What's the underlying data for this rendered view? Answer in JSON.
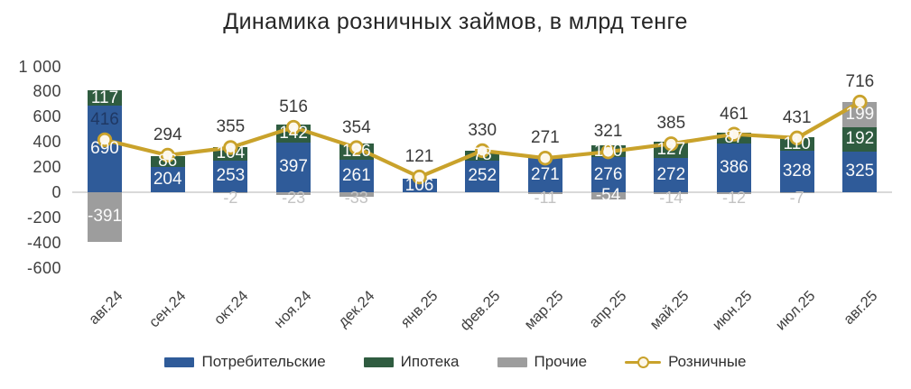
{
  "title": "Динамика розничных займов, в млрд тенге",
  "legend": [
    {
      "key": "consumer",
      "label": "Потребительские",
      "color": "#2f5b99",
      "type": "bar"
    },
    {
      "key": "mortgage",
      "label": "Ипотека",
      "color": "#2f5c40",
      "type": "bar"
    },
    {
      "key": "other",
      "label": "Прочие",
      "color": "#9d9d9d",
      "type": "bar"
    },
    {
      "key": "retail",
      "label": "Розничные",
      "color": "#c9a22b",
      "type": "line"
    }
  ],
  "chart_data": {
    "type": "bar",
    "subtype": "stacked-bars-with-line-overlay",
    "title": "Динамика розничных займов, в млрд тенге",
    "categories": [
      "авг.24",
      "сен.24",
      "окт.24",
      "ноя.24",
      "дек.24",
      "янв.25",
      "фев.25",
      "мар.25",
      "апр.25",
      "май.25",
      "июн.25",
      "июл.25",
      "авг.25"
    ],
    "series": [
      {
        "key": "consumer",
        "name": "Потребительские",
        "type": "bar",
        "color": "#2f5b99",
        "values": [
          690,
          204,
          253,
          397,
          261,
          106,
          252,
          271,
          276,
          272,
          386,
          328,
          325
        ]
      },
      {
        "key": "mortgage",
        "name": "Ипотека",
        "type": "bar",
        "color": "#2f5c40",
        "values": [
          117,
          86,
          104,
          142,
          126,
          null,
          78,
          null,
          100,
          127,
          87,
          110,
          192
        ]
      },
      {
        "key": "other",
        "name": "Прочие",
        "type": "bar",
        "color": "#9d9d9d",
        "values": [
          -391,
          null,
          -2,
          -23,
          -33,
          null,
          null,
          -11,
          -54,
          -14,
          -12,
          -7,
          199
        ]
      },
      {
        "key": "retail",
        "name": "Розничные",
        "type": "line",
        "color": "#c9a22b",
        "values": [
          416,
          294,
          355,
          516,
          354,
          121,
          330,
          271,
          321,
          385,
          461,
          431,
          716
        ]
      }
    ],
    "ylim": [
      -600,
      1000
    ],
    "yticks": [
      {
        "v": 1000,
        "label": "1 000"
      },
      {
        "v": 800,
        "label": "800"
      },
      {
        "v": 600,
        "label": "600"
      },
      {
        "v": 400,
        "label": "400"
      },
      {
        "v": 200,
        "label": "200"
      },
      {
        "v": 0,
        "label": "0"
      },
      {
        "v": -200,
        "label": "-200"
      },
      {
        "v": -400,
        "label": "-400"
      },
      {
        "v": -600,
        "label": "-600"
      }
    ],
    "grid": false,
    "legend_position": "bottom",
    "colors": {
      "axis_line": "#d9d9d9",
      "marker_fill": "#fdf7e9",
      "line_label_default": "#3a3a3a",
      "line_label_first": "#1f3864"
    }
  }
}
